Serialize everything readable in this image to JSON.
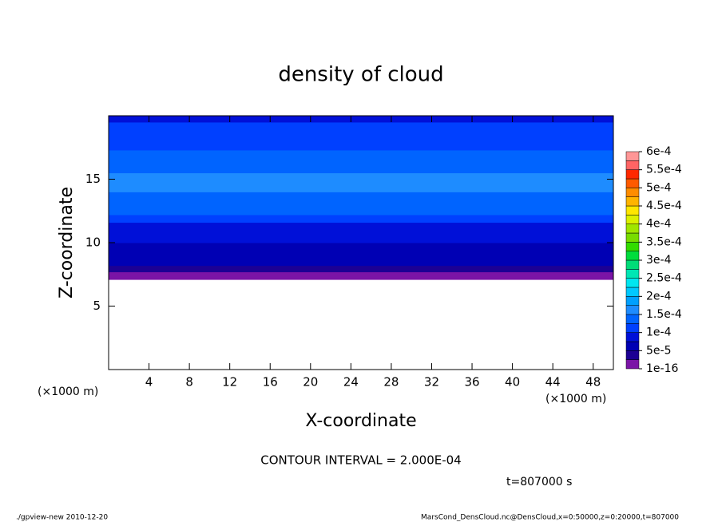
{
  "chart_data": {
    "type": "contour",
    "title": "density of cloud",
    "xlabel": "X-coordinate",
    "ylabel": "Z-coordinate",
    "xunit": "(×1000 m)",
    "yunit": "(×1000 m)",
    "xlim": [
      0,
      50
    ],
    "ylim": [
      0,
      20
    ],
    "xticks": [
      4,
      8,
      12,
      16,
      20,
      24,
      28,
      32,
      36,
      40,
      44,
      48
    ],
    "yticks": [
      5,
      10,
      15
    ],
    "z_edges": [
      7.1,
      7.7,
      8.2,
      8.7,
      9.3,
      10,
      10.8,
      11.6,
      12.2,
      13,
      14,
      15.5,
      16.5,
      17.3,
      18,
      19,
      19.5,
      20
    ],
    "density": [
      2e-05,
      4e-05,
      5.5e-05,
      6.5e-05,
      7.5e-05,
      8.5e-05,
      0.0001,
      0.00012,
      0.00013,
      0.00014,
      0.000155,
      0.00014,
      0.00013,
      0.00012,
      0.00011,
      0.000105,
      0.0001
    ],
    "colorbar": {
      "ticks": [
        {
          "value": 1e-16,
          "label": "1e-16"
        },
        {
          "value": 5e-05,
          "label": "5e-5"
        },
        {
          "value": 0.0001,
          "label": "1e-4"
        },
        {
          "value": 0.00015,
          "label": "1.5e-4"
        },
        {
          "value": 0.0002,
          "label": "2e-4"
        },
        {
          "value": 0.00025,
          "label": "2.5e-4"
        },
        {
          "value": 0.0003,
          "label": "3e-4"
        },
        {
          "value": 0.00035,
          "label": "3.5e-4"
        },
        {
          "value": 0.0004,
          "label": "4e-4"
        },
        {
          "value": 0.00045,
          "label": "4.5e-4"
        },
        {
          "value": 0.0005,
          "label": "5e-4"
        },
        {
          "value": 0.00055,
          "label": "5.5e-4"
        },
        {
          "value": 0.0006,
          "label": "6e-4"
        }
      ],
      "colors": [
        "#7a14a6",
        "#1c0094",
        "#0000b4",
        "#0010d8",
        "#0040ff",
        "#0064ff",
        "#1e8cff",
        "#00a0ff",
        "#00c8ff",
        "#00e6f0",
        "#00e6b4",
        "#00dc78",
        "#00dc3c",
        "#32dc00",
        "#78dc00",
        "#a0e600",
        "#dcf000",
        "#ffe600",
        "#ffb400",
        "#ff8c00",
        "#ff5a00",
        "#ff2800",
        "#ff6464",
        "#ff9696"
      ]
    },
    "annotations": [
      "CONTOUR INTERVAL = 2.000E-04",
      "t=807000 s"
    ],
    "footer_left": "./gpview-new  2010-12-20",
    "footer_right": "MarsCond_DensCloud.nc@DensCloud,x=0:50000,z=0:20000,t=807000"
  }
}
